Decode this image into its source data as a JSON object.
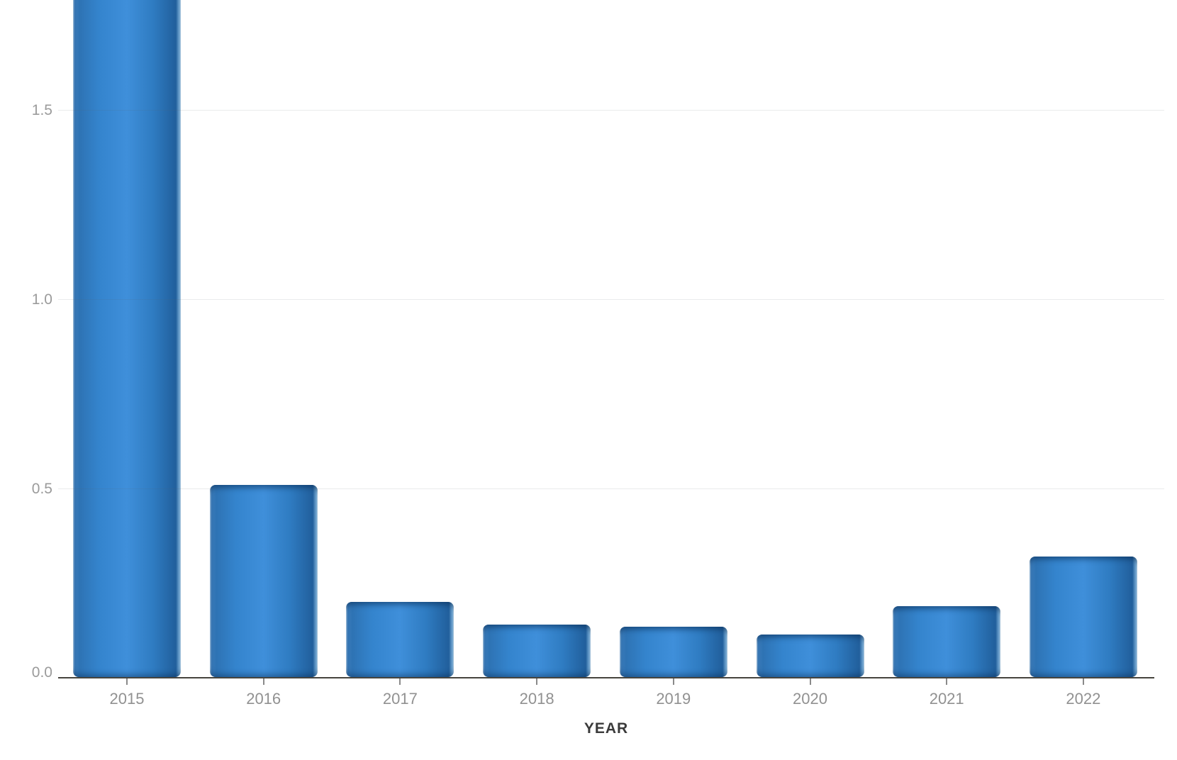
{
  "chart_data": {
    "type": "bar",
    "title": "",
    "xlabel": "YEAR",
    "ylabel": "",
    "categories": [
      "2015",
      "2016",
      "2017",
      "2018",
      "2019",
      "2020",
      "2021",
      "2022"
    ],
    "values": [
      1.9,
      0.51,
      0.2,
      0.14,
      0.135,
      0.115,
      0.19,
      0.32
    ],
    "clipped": [
      true,
      false,
      false,
      false,
      false,
      false,
      false,
      false
    ],
    "clipped_note": "2015 bar extends past the top edge of the visible image; its true value is not shown",
    "y_ticks": [
      "0.0",
      "0.5",
      "1.0",
      "1.5"
    ],
    "y_tick_values": [
      0,
      0.5,
      1.0,
      1.5
    ],
    "ylim_visible": [
      0,
      1.79
    ],
    "grid": "horizontal-only",
    "legend": "none",
    "colors": {
      "bar_main": "#3484cd",
      "bar_highlight": "#3f8fda",
      "bar_edge_dark": "#215f9c",
      "bar_edge_light": "#b9d6ee",
      "grid_line": "#e8e8e8",
      "axis_line": "#46443e",
      "tick_mark": "#8a8a8a",
      "y_tick_label": "#9b9b9b",
      "x_tick_label": "#919191",
      "axis_title": "#3a3a3a",
      "background": "#ffffff"
    }
  }
}
